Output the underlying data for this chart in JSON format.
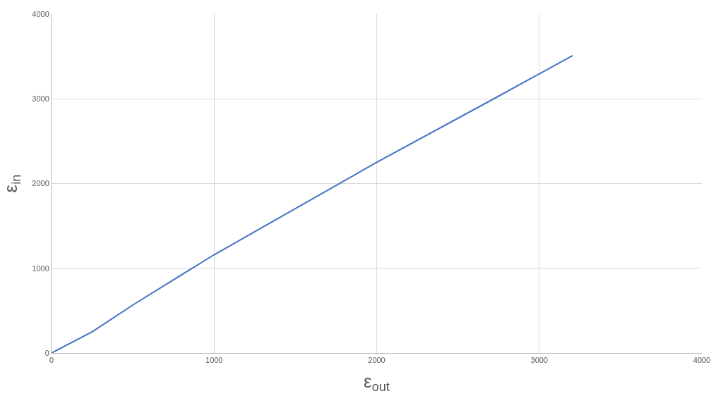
{
  "chart_data": {
    "type": "line",
    "xlabel": "ε$_{out}$",
    "ylabel": "ε$_{in}$",
    "x": [
      0,
      250,
      511,
      1000,
      2000,
      2720,
      3205
    ],
    "series": [
      {
        "color": "#4472c4",
        "values": [
          0,
          250,
          580,
          1160,
          2250,
          3000,
          3510
        ]
      }
    ],
    "xlim": [
      0,
      4000
    ],
    "xticks": [
      0,
      1000,
      2000,
      3000,
      4000
    ],
    "ylim": [
      0,
      4000
    ],
    "yticks": [
      0,
      1000,
      2000,
      3000,
      4000
    ],
    "grid": true,
    "legend": false,
    "marker": "none",
    "line_style": "solid"
  }
}
